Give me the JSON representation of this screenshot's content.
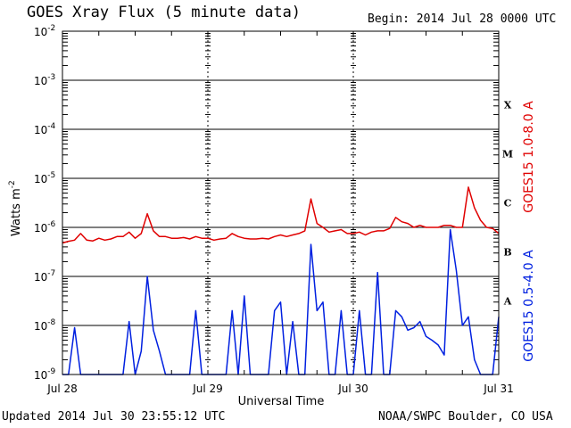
{
  "header": {
    "title": "GOES Xray Flux (5 minute data)",
    "begin": "Begin:  2014 Jul 28 0000 UTC"
  },
  "footer": {
    "updated": "Updated 2014 Jul 30 23:55:12 UTC",
    "credit": "NOAA/SWPC Boulder, CO USA"
  },
  "colors": {
    "long": "#e00000",
    "short": "#0020e0",
    "axes": "#000000"
  },
  "chart_data": {
    "type": "line",
    "yscale": "log",
    "ylim": [
      1e-09,
      0.01
    ],
    "xlim": [
      0,
      72
    ],
    "xunit_note": "hours since Jul 28 0000 UTC",
    "ylabel": "Watts m",
    "ylabel_sup": "-2",
    "xlabel": "Universal Time",
    "y_ticks": [
      {
        "value": 0.01,
        "mant": "10",
        "exp": "-2"
      },
      {
        "value": 0.001,
        "mant": "10",
        "exp": "-3"
      },
      {
        "value": 0.0001,
        "mant": "10",
        "exp": "-4"
      },
      {
        "value": 1e-05,
        "mant": "10",
        "exp": "-5"
      },
      {
        "value": 1e-06,
        "mant": "10",
        "exp": "-6"
      },
      {
        "value": 1e-07,
        "mant": "10",
        "exp": "-7"
      },
      {
        "value": 1e-08,
        "mant": "10",
        "exp": "-8"
      },
      {
        "value": 1e-09,
        "mant": "10",
        "exp": "-9"
      }
    ],
    "x_ticks": [
      {
        "value": 0,
        "label": "Jul 28"
      },
      {
        "value": 24,
        "label": "Jul 29"
      },
      {
        "value": 48,
        "label": "Jul 30"
      },
      {
        "value": 72,
        "label": "Jul 31"
      }
    ],
    "flare_classes": [
      {
        "label": "X",
        "value": 0.0001
      },
      {
        "label": "M",
        "value": 1e-05
      },
      {
        "label": "C",
        "value": 1e-06
      },
      {
        "label": "B",
        "value": 1e-07
      },
      {
        "label": "A",
        "value": 1e-08
      }
    ],
    "series": [
      {
        "name": "GOES15 1.0-8.0 A",
        "color": "#e00000",
        "x": [
          0,
          1,
          2,
          3,
          4,
          5,
          6,
          7,
          8,
          9,
          10,
          11,
          12,
          13,
          14,
          15,
          16,
          17,
          18,
          19,
          20,
          21,
          22,
          23,
          24,
          25,
          26,
          27,
          28,
          29,
          30,
          31,
          32,
          33,
          34,
          35,
          36,
          37,
          38,
          39,
          40,
          41,
          42,
          43,
          44,
          45,
          46,
          47,
          48,
          49,
          50,
          51,
          52,
          53,
          54,
          55,
          56,
          57,
          58,
          59,
          60,
          61,
          62,
          63,
          64,
          65,
          66,
          67,
          68,
          69,
          70,
          71,
          72
        ],
        "values": [
          4.8e-07,
          5.2e-07,
          5.5e-07,
          7.5e-07,
          5.5e-07,
          5.3e-07,
          6e-07,
          5.5e-07,
          5.8e-07,
          6.5e-07,
          6.5e-07,
          8e-07,
          6e-07,
          7.5e-07,
          1.9e-06,
          8.5e-07,
          6.5e-07,
          6.5e-07,
          6e-07,
          6e-07,
          6.2e-07,
          5.8e-07,
          6.5e-07,
          6e-07,
          6e-07,
          5.5e-07,
          5.8e-07,
          6e-07,
          7.5e-07,
          6.5e-07,
          6e-07,
          5.8e-07,
          5.8e-07,
          6e-07,
          5.8e-07,
          6.5e-07,
          7e-07,
          6.5e-07,
          7e-07,
          7.5e-07,
          8.5e-07,
          3.8e-06,
          1.2e-06,
          1e-06,
          8e-07,
          8.5e-07,
          9e-07,
          7.5e-07,
          7.5e-07,
          8e-07,
          7e-07,
          8e-07,
          8.5e-07,
          8.5e-07,
          9.5e-07,
          1.6e-06,
          1.3e-06,
          1.2e-06,
          1e-06,
          1.1e-06,
          1e-06,
          1e-06,
          1e-06,
          1.1e-06,
          1.1e-06,
          1e-06,
          1e-06,
          6.6e-06,
          2.5e-06,
          1.4e-06,
          1e-06,
          9.5e-07,
          7.5e-07
        ]
      },
      {
        "name": "GOES15 0.5-4.0 A",
        "color": "#0020e0",
        "x": [
          0,
          1,
          2,
          3,
          4,
          5,
          6,
          7,
          8,
          9,
          10,
          11,
          12,
          13,
          14,
          15,
          16,
          17,
          18,
          19,
          20,
          21,
          22,
          23,
          24,
          25,
          26,
          27,
          28,
          29,
          30,
          31,
          32,
          33,
          34,
          35,
          36,
          37,
          38,
          39,
          40,
          41,
          42,
          43,
          44,
          45,
          46,
          47,
          48,
          49,
          50,
          51,
          52,
          53,
          54,
          55,
          56,
          57,
          58,
          59,
          60,
          61,
          62,
          63,
          64,
          65,
          66,
          67,
          68,
          69,
          70,
          71,
          72
        ],
        "values": [
          1e-09,
          1e-09,
          9e-09,
          1e-09,
          1e-09,
          1e-09,
          1e-09,
          1e-09,
          1e-09,
          1e-09,
          1e-09,
          1.2e-08,
          1e-09,
          3e-09,
          1e-07,
          8e-09,
          3e-09,
          1e-09,
          1e-09,
          1e-09,
          1e-09,
          1e-09,
          2e-08,
          1e-09,
          1e-09,
          1e-09,
          1e-09,
          1e-09,
          2e-08,
          1e-09,
          4e-08,
          1e-09,
          1e-09,
          1e-09,
          1e-09,
          2e-08,
          3e-08,
          1e-09,
          1.2e-08,
          1e-09,
          1e-09,
          4.5e-07,
          2e-08,
          3e-08,
          1e-09,
          1e-09,
          2e-08,
          1e-09,
          1e-09,
          2e-08,
          1e-09,
          1e-09,
          1.2e-07,
          1e-09,
          1e-09,
          2e-08,
          1.5e-08,
          8e-09,
          9e-09,
          1.2e-08,
          6e-09,
          5e-09,
          4e-09,
          2.5e-09,
          9e-07,
          1.3e-07,
          1e-08,
          1.5e-08,
          2e-09,
          1e-09,
          1e-09,
          1e-09,
          1.5e-08
        ]
      }
    ]
  }
}
